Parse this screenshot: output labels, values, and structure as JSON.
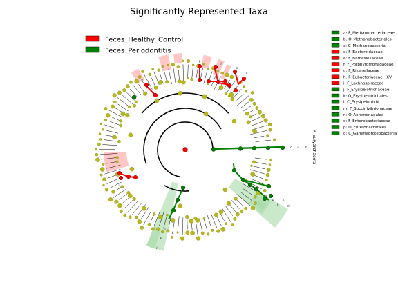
{
  "chart_data": {
    "type": "cladogram",
    "title": "Significantly Represented Taxa",
    "groups": [
      {
        "name": "Feces_Healthy_Control",
        "color": "#ff0000"
      },
      {
        "name": "Feces_Periodontitis",
        "color": "#008000"
      }
    ],
    "colors": {
      "neutral_node": "#b8b81a",
      "highlight_red": "#ffb3b3",
      "highlight_green": "#a6d9a6"
    },
    "taxa": [
      {
        "key": "a",
        "name": "F_Methanobacteriaceae",
        "group": "Feces_Periodontitis"
      },
      {
        "key": "b",
        "name": "O_Methanobacteriales",
        "group": "Feces_Periodontitis"
      },
      {
        "key": "c",
        "name": "C_Methanobacteria",
        "group": "Feces_Periodontitis"
      },
      {
        "key": "d",
        "name": "F_Bacteroidaceae",
        "group": "Feces_Healthy_Control"
      },
      {
        "key": "e",
        "name": "F_Barnesiellaceae",
        "group": "Feces_Healthy_Control"
      },
      {
        "key": "f",
        "name": "F_Porphyromonadaceae",
        "group": "Feces_Healthy_Control"
      },
      {
        "key": "g",
        "name": "F_Rikenellaceae",
        "group": "Feces_Healthy_Control"
      },
      {
        "key": "h",
        "name": "F_Eubacteriaceae__XV_",
        "group": "Feces_Healthy_Control"
      },
      {
        "key": "i",
        "name": "F_Lachnospiraceae",
        "group": "Feces_Healthy_Control"
      },
      {
        "key": "j",
        "name": "F_Erysipelotrichaceae",
        "group": "Feces_Periodontitis"
      },
      {
        "key": "k",
        "name": "O_Erysipelotrichales",
        "group": "Feces_Periodontitis"
      },
      {
        "key": "l",
        "name": "C_Erysipelotrichi",
        "group": "Feces_Periodontitis"
      },
      {
        "key": "m",
        "name": "F_Succinivibrionaceae",
        "group": "Feces_Periodontitis"
      },
      {
        "key": "n",
        "name": "O_Aeromonadales",
        "group": "Feces_Periodontitis"
      },
      {
        "key": "o",
        "name": "F_Enterobacteriaceae",
        "group": "Feces_Periodontitis"
      },
      {
        "key": "p",
        "name": "O_Enterobacterales",
        "group": "Feces_Periodontitis"
      },
      {
        "key": "q",
        "name": "C_Gammaproteobacteria",
        "group": "Feces_Periodontitis"
      }
    ],
    "clade_labels": [
      {
        "text": "P_Euryarchaeota",
        "group": "Feces_Periodontitis"
      }
    ],
    "sector_letters": [
      "h",
      "g",
      "f",
      "e",
      "d",
      "i",
      "j",
      "k",
      "l",
      "m",
      "n",
      "o",
      "p",
      "q",
      "a",
      "b",
      "c"
    ]
  }
}
